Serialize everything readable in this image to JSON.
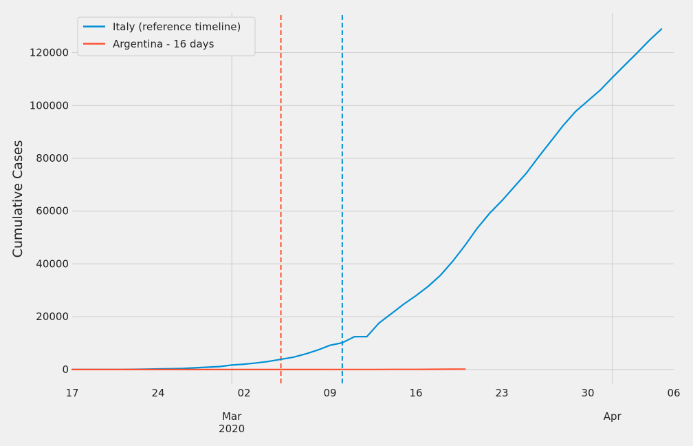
{
  "chart_data": {
    "type": "line",
    "title": "",
    "xlabel": "",
    "ylabel": "Cumulative Cases",
    "x_range": [
      "2020-02-17",
      "2020-04-06"
    ],
    "ylim": [
      -5500,
      135000
    ],
    "grid": true,
    "legend_position": "top-left",
    "x_ticks": [
      {
        "date": "2020-02-17",
        "label": "17"
      },
      {
        "date": "2020-02-24",
        "label": "24"
      },
      {
        "date": "2020-03-02",
        "label": "02"
      },
      {
        "date": "2020-03-09",
        "label": "09"
      },
      {
        "date": "2020-03-16",
        "label": "16"
      },
      {
        "date": "2020-03-23",
        "label": "23"
      },
      {
        "date": "2020-03-30",
        "label": "30"
      },
      {
        "date": "2020-04-06",
        "label": "06"
      }
    ],
    "x_major_labels": [
      {
        "date": "2020-03-01",
        "label": "Mar",
        "sublabel": "2020"
      },
      {
        "date": "2020-04-01",
        "label": "Apr",
        "sublabel": ""
      }
    ],
    "y_ticks": [
      0,
      20000,
      40000,
      60000,
      80000,
      100000,
      120000
    ],
    "series": [
      {
        "name": "Italy (reference timeline)",
        "color": "#008fd5",
        "x": [
          "2020-02-17",
          "2020-02-18",
          "2020-02-19",
          "2020-02-20",
          "2020-02-21",
          "2020-02-22",
          "2020-02-23",
          "2020-02-24",
          "2020-02-25",
          "2020-02-26",
          "2020-02-27",
          "2020-02-28",
          "2020-02-29",
          "2020-03-01",
          "2020-03-02",
          "2020-03-03",
          "2020-03-04",
          "2020-03-05",
          "2020-03-06",
          "2020-03-07",
          "2020-03-08",
          "2020-03-09",
          "2020-03-10",
          "2020-03-11",
          "2020-03-12",
          "2020-03-13",
          "2020-03-14",
          "2020-03-15",
          "2020-03-16",
          "2020-03-17",
          "2020-03-18",
          "2020-03-19",
          "2020-03-20",
          "2020-03-21",
          "2020-03-22",
          "2020-03-23",
          "2020-03-24",
          "2020-03-25",
          "2020-03-26",
          "2020-03-27",
          "2020-03-28",
          "2020-03-29",
          "2020-03-30",
          "2020-03-31",
          "2020-04-01",
          "2020-04-02",
          "2020-04-03",
          "2020-04-04",
          "2020-04-05"
        ],
        "y": [
          3,
          3,
          3,
          3,
          20,
          79,
          150,
          229,
          322,
          400,
          650,
          888,
          1128,
          1694,
          2036,
          2502,
          3089,
          3858,
          4636,
          5883,
          7375,
          9172,
          10149,
          12462,
          12462,
          17660,
          21157,
          24747,
          27980,
          31506,
          35713,
          41035,
          47021,
          53578,
          59138,
          63927,
          69176,
          74386,
          80589,
          86498,
          92472,
          97689,
          101739,
          105792,
          110574,
          115242,
          119827,
          124632,
          128948
        ]
      },
      {
        "name": "Argentina - 16 days",
        "color": "#fc4f30",
        "x": [
          "2020-02-17",
          "2020-02-18",
          "2020-02-19",
          "2020-02-20",
          "2020-02-21",
          "2020-02-22",
          "2020-02-23",
          "2020-02-24",
          "2020-02-25",
          "2020-02-26",
          "2020-02-27",
          "2020-02-28",
          "2020-02-29",
          "2020-03-01",
          "2020-03-02",
          "2020-03-03",
          "2020-03-04",
          "2020-03-05",
          "2020-03-06",
          "2020-03-07",
          "2020-03-08",
          "2020-03-09",
          "2020-03-10",
          "2020-03-11",
          "2020-03-12",
          "2020-03-13",
          "2020-03-14",
          "2020-03-15",
          "2020-03-16",
          "2020-03-17",
          "2020-03-18",
          "2020-03-19",
          "2020-03-20"
        ],
        "y": [
          0,
          0,
          0,
          0,
          0,
          0,
          0,
          0,
          0,
          0,
          0,
          0,
          0,
          0,
          0,
          0,
          1,
          2,
          8,
          12,
          12,
          17,
          19,
          21,
          31,
          34,
          45,
          56,
          65,
          79,
          97,
          128,
          158
        ]
      }
    ],
    "vertical_markers": [
      {
        "date": "2020-03-05",
        "color": "#fc4f30",
        "style": "dashed"
      },
      {
        "date": "2020-03-10",
        "color": "#008fd5",
        "style": "dashed"
      }
    ]
  }
}
